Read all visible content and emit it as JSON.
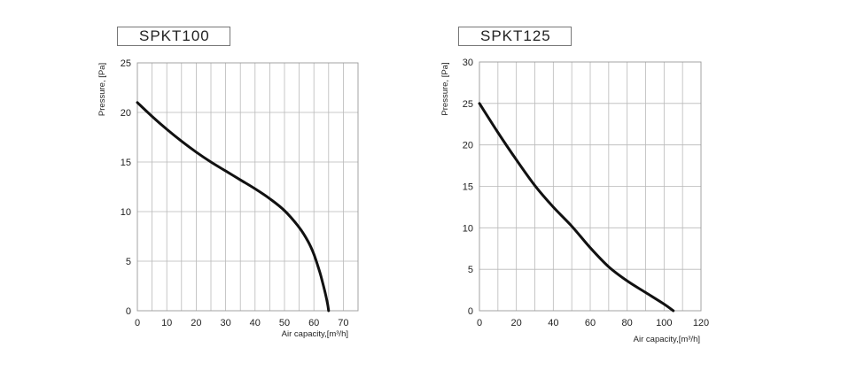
{
  "chart_data": [
    {
      "type": "line",
      "title": "SPKT100",
      "xlabel": "Air capacity,[m³/h]",
      "ylabel": "Pressure, [Pa]",
      "xlim": [
        0,
        75
      ],
      "ylim": [
        0,
        25
      ],
      "x_ticks": [
        "0",
        "10",
        "20",
        "30",
        "40",
        "50",
        "60",
        "70"
      ],
      "y_ticks": [
        "0",
        "5",
        "10",
        "15",
        "20",
        "25"
      ],
      "grid": true,
      "series": [
        {
          "x": [
            0,
            5,
            10,
            15,
            20,
            25,
            30,
            35,
            40,
            45,
            50,
            55,
            58,
            60,
            62,
            63,
            64,
            64.7,
            65
          ],
          "y": [
            21,
            19.6,
            18.3,
            17.1,
            16,
            15,
            14.1,
            13.2,
            12.3,
            11.3,
            10.1,
            8.4,
            7,
            5.7,
            3.9,
            2.8,
            1.6,
            0.6,
            0
          ]
        }
      ]
    },
    {
      "type": "line",
      "title": "SPKT125",
      "xlabel": "Air capacity,[m³/h]",
      "ylabel": "Pressure, [Pa]",
      "xlim": [
        0,
        120
      ],
      "ylim": [
        0,
        30
      ],
      "x_ticks": [
        "0",
        "20",
        "40",
        "60",
        "80",
        "100",
        "120"
      ],
      "y_ticks": [
        "0",
        "5",
        "10",
        "15",
        "20",
        "25",
        "30"
      ],
      "grid": true,
      "series": [
        {
          "x": [
            0,
            10,
            20,
            30,
            40,
            50,
            60,
            70,
            80,
            90,
            100,
            105
          ],
          "y": [
            25,
            21.5,
            18.2,
            15.1,
            12.5,
            10.2,
            7.6,
            5.3,
            3.6,
            2.2,
            0.8,
            0
          ]
        }
      ]
    }
  ]
}
